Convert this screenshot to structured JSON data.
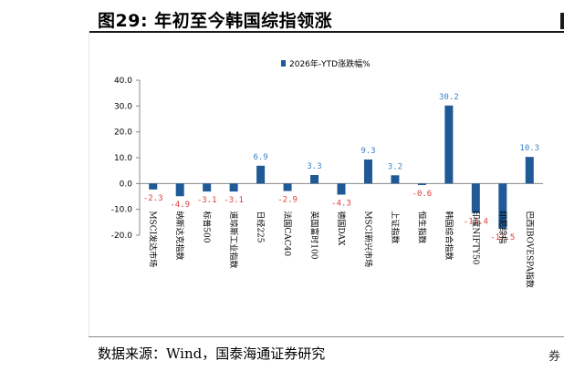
{
  "title": "图29: 年初至今韩国综指领涨",
  "source": "数据来源：Wind，国泰海通证券研究",
  "page_fragment": "券",
  "chart_data": {
    "type": "bar",
    "categories": [
      "MSCI发达市场",
      "纳斯达克指数",
      "标普500",
      "道琼斯工业指数",
      "日经225",
      "法国CAC40",
      "英国富时100",
      "德国DAX",
      "MSCI新兴市场",
      "上证指数",
      "恒生指数",
      "韩国综合指数",
      "印度NIFTY50",
      "印尼综指",
      "巴西IBOVESPA指数"
    ],
    "series": [
      {
        "name": "2026年-YTD涨跌幅%",
        "values": [
          -2.3,
          -4.9,
          -3.1,
          -3.1,
          6.9,
          -2.9,
          3.3,
          -4.3,
          9.3,
          3.2,
          -0.6,
          30.2,
          -11.4,
          -17.5,
          10.3
        ]
      }
    ],
    "value_labels": [
      "-2.3",
      "-4.9",
      "-3.1",
      "-3.1",
      "6.9",
      "-2.9",
      "3.3",
      "-4.3",
      "9.3",
      "3.2",
      "-0.6",
      "30.2",
      "-11.4",
      "-17.5",
      "10.3"
    ],
    "y_ticks": [
      "40.0",
      "30.0",
      "20.0",
      "10.0",
      "0.0",
      "-10.0",
      "-20.0"
    ],
    "ylim": [
      -20,
      40
    ],
    "legend_position": "top",
    "bar_color": "#1f5a96",
    "positive_label_color": "#3a7fc4",
    "negative_label_color": "#e03c3c",
    "grid": false
  }
}
